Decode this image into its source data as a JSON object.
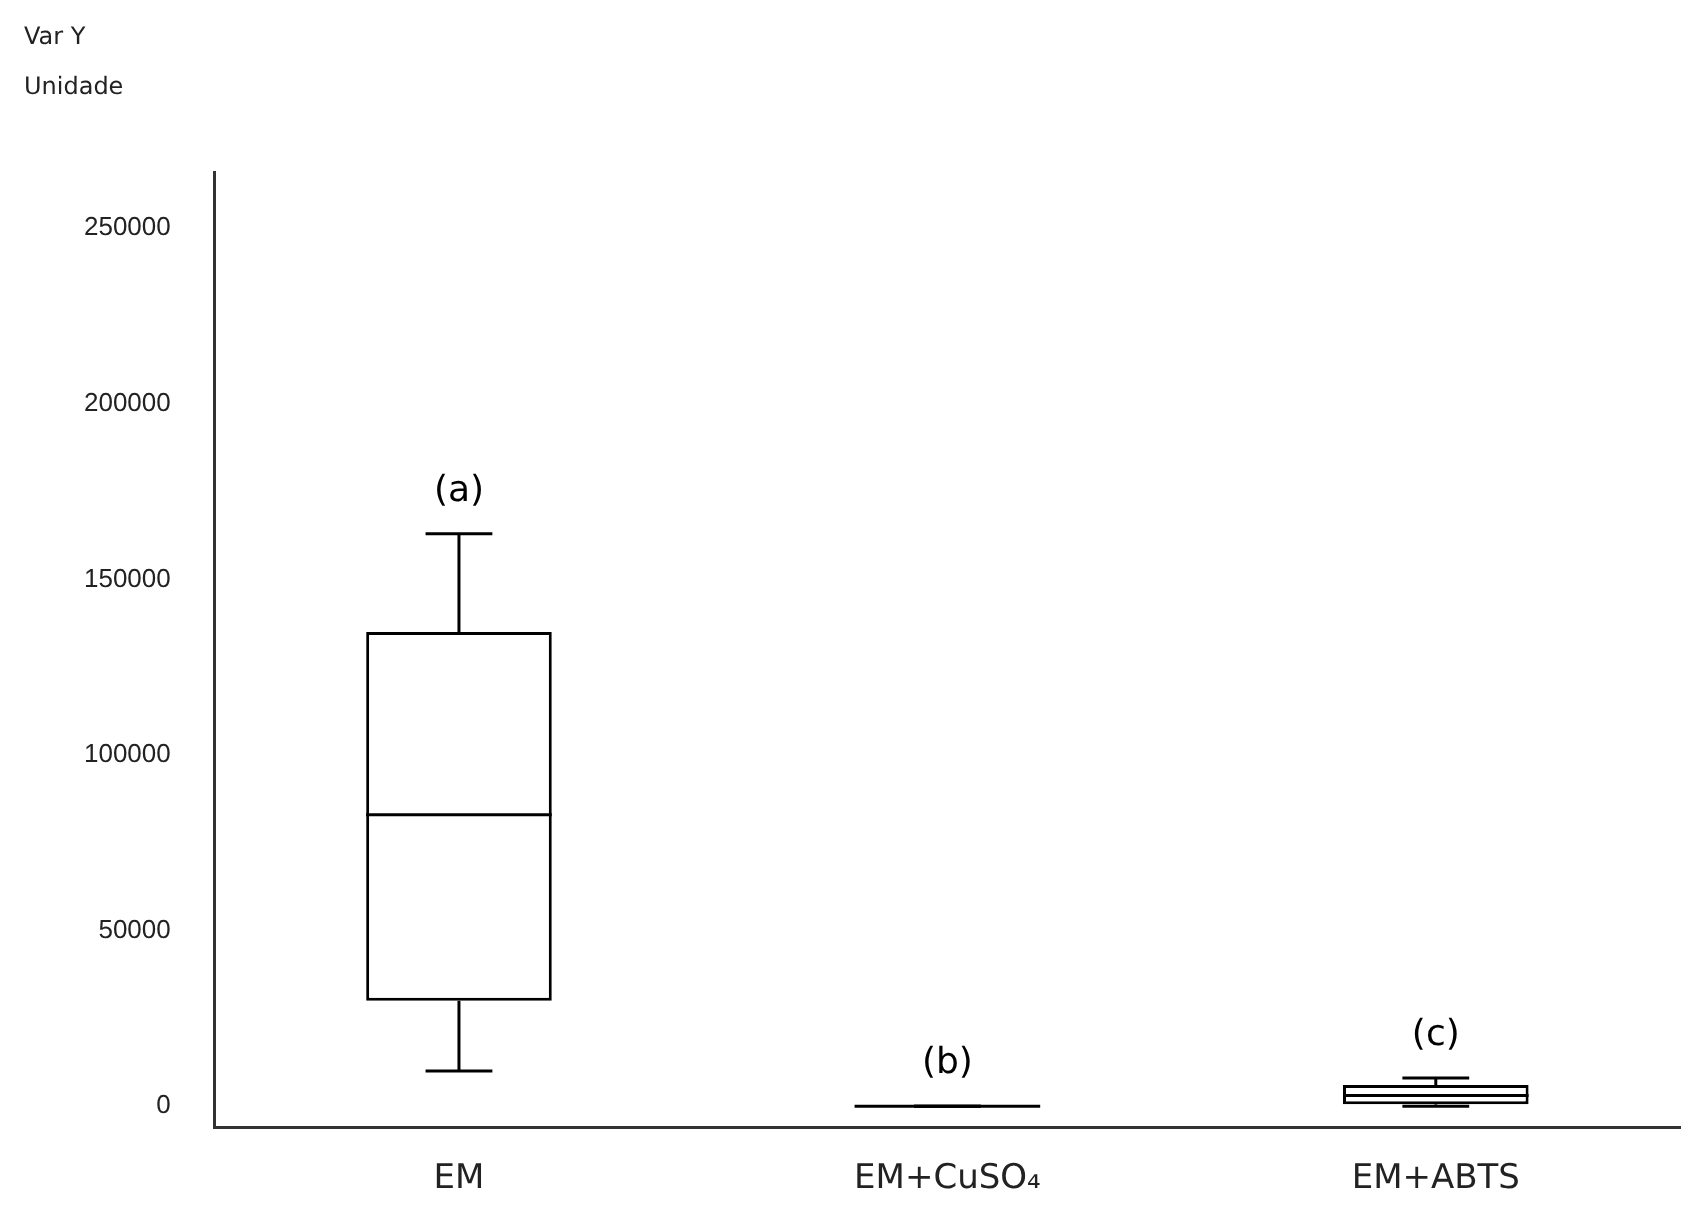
{
  "chart_data": {
    "type": "box",
    "ylabel": "Var Y\nUnidade",
    "categories": [
      "EM",
      "EM+CuSO₄",
      "EM+ABTS"
    ],
    "boxes": [
      {
        "low": 10000,
        "q1": 30000,
        "median": 83000,
        "q3": 135000,
        "high": 163000
      },
      {
        "low": 0,
        "q1": 0,
        "median": 0,
        "q3": 0,
        "high": 0
      },
      {
        "low": 0,
        "q1": 500,
        "median": 3000,
        "q3": 6000,
        "high": 8000
      }
    ],
    "color": "#000000",
    "ylim": [
      -6000,
      266000
    ],
    "yticks": [
      0,
      50000,
      100000,
      150000,
      200000,
      250000
    ],
    "grid": false,
    "legend": false,
    "annotations": [
      {
        "text": "(a)",
        "x": "EM",
        "y": 163000
      },
      {
        "text": "(b)",
        "x": "EM+CuSO₄",
        "y": 0
      },
      {
        "text": "(c)",
        "x": "EM+ABTS",
        "y": 8000
      }
    ]
  }
}
